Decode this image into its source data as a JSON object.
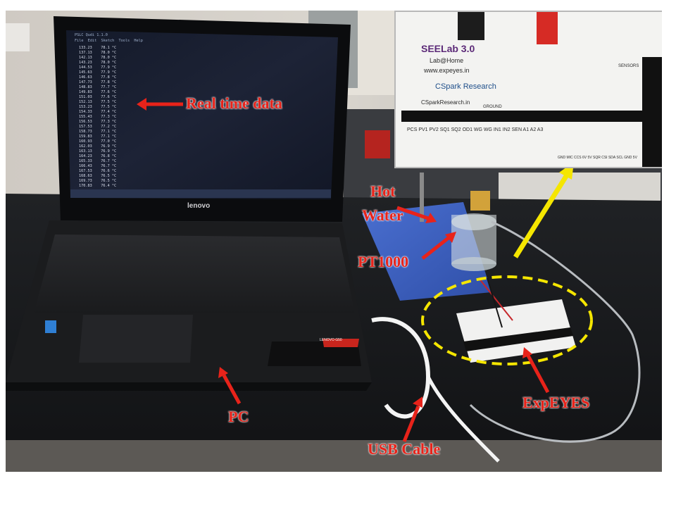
{
  "labels": {
    "real_time_data": "Real time data",
    "hot_water_line1": "Hot",
    "hot_water_line2": "Water",
    "pt1000": "PT1000",
    "pc": "PC",
    "usb_cable": "USB Cable",
    "expeyes": "ExpEYES"
  },
  "laptop": {
    "brand": "lenovo",
    "model_badge": "LENOVO G50",
    "window_title": "PSLC Qudi 1.1.0",
    "menu": "File  Edit  Sketch  Tools  Help"
  },
  "screen_rows": [
    [
      "133.23",
      "78.1"
    ],
    [
      "137.13",
      "78.0"
    ],
    [
      "142.13",
      "78.0"
    ],
    [
      "143.23",
      "78.0"
    ],
    [
      "144.53",
      "77.9"
    ],
    [
      "145.63",
      "77.9"
    ],
    [
      "146.63",
      "77.8"
    ],
    [
      "147.73",
      "77.8"
    ],
    [
      "148.83",
      "77.7"
    ],
    [
      "149.83",
      "77.6"
    ],
    [
      "151.03",
      "77.6"
    ],
    [
      "152.13",
      "77.5"
    ],
    [
      "153.23",
      "77.5"
    ],
    [
      "154.33",
      "77.4"
    ],
    [
      "155.43",
      "77.3"
    ],
    [
      "156.53",
      "77.3"
    ],
    [
      "157.53",
      "77.2"
    ],
    [
      "158.73",
      "77.1"
    ],
    [
      "159.83",
      "77.1"
    ],
    [
      "160.93",
      "77.0"
    ],
    [
      "162.03",
      "76.9"
    ],
    [
      "163.13",
      "76.9"
    ],
    [
      "164.23",
      "76.8"
    ],
    [
      "165.33",
      "76.7"
    ],
    [
      "166.43",
      "76.7"
    ],
    [
      "167.53",
      "76.6"
    ],
    [
      "168.63",
      "76.5"
    ],
    [
      "169.73",
      "76.5"
    ],
    [
      "170.83",
      "76.4"
    ]
  ],
  "inset": {
    "brand": "SEELab 3.0",
    "tagline": "Lab@Home",
    "url": "www.expeyes.in",
    "company": "CSpark Research",
    "company_url": "CSparkResearch.in",
    "ground": "GROUND",
    "sensors": "SENSORS",
    "pins_bottom": "PCS  PV1  PV2  SQ1  SQ2  OD1  WG   WG  IN1  IN2  SEN  A1   A2   A3",
    "pins_right": "GND MIC CCS 6V 5V SQR CSI SDA SCL GND 5V"
  },
  "colors": {
    "label_red": "#e8231a",
    "highlight_yellow": "#f5e600"
  }
}
